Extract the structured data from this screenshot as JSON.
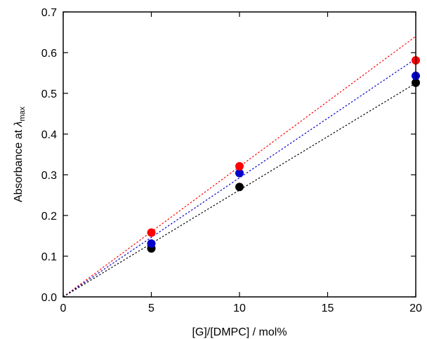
{
  "chart_data": {
    "type": "scatter",
    "title": "",
    "xlabel": "[G]/[DMPC] / mol%",
    "ylabel": {
      "text": "Absorbance at ",
      "symbol": "λ",
      "subscript": "max"
    },
    "xlim": [
      0,
      20
    ],
    "ylim": [
      0,
      0.7
    ],
    "xticks": [
      0,
      5,
      10,
      15,
      20
    ],
    "yticks": [
      0.0,
      0.1,
      0.2,
      0.3,
      0.4,
      0.5,
      0.6,
      0.7
    ],
    "ytick_labels": [
      "0.0",
      "0.1",
      "0.2",
      "0.3",
      "0.4",
      "0.5",
      "0.6",
      "0.7"
    ],
    "grid": false,
    "legend": "none",
    "series": [
      {
        "color": "#ff0000",
        "x": [
          5,
          10,
          20
        ],
        "y": [
          0.158,
          0.321,
          0.581
        ],
        "fit": {
          "type": "dotted-line",
          "x": [
            0,
            20
          ],
          "y": [
            0.0,
            0.64
          ]
        }
      },
      {
        "color": "#0000cc",
        "x": [
          5,
          10,
          20
        ],
        "y": [
          0.131,
          0.304,
          0.543
        ],
        "fit": {
          "type": "dotted-line",
          "x": [
            0,
            20
          ],
          "y": [
            0.0,
            0.585
          ]
        }
      },
      {
        "color": "#000000",
        "x": [
          5,
          10,
          20
        ],
        "y": [
          0.119,
          0.27,
          0.526
        ],
        "fit": {
          "type": "dotted-line",
          "x": [
            0,
            20
          ],
          "y": [
            0.0,
            0.525
          ]
        }
      }
    ]
  }
}
